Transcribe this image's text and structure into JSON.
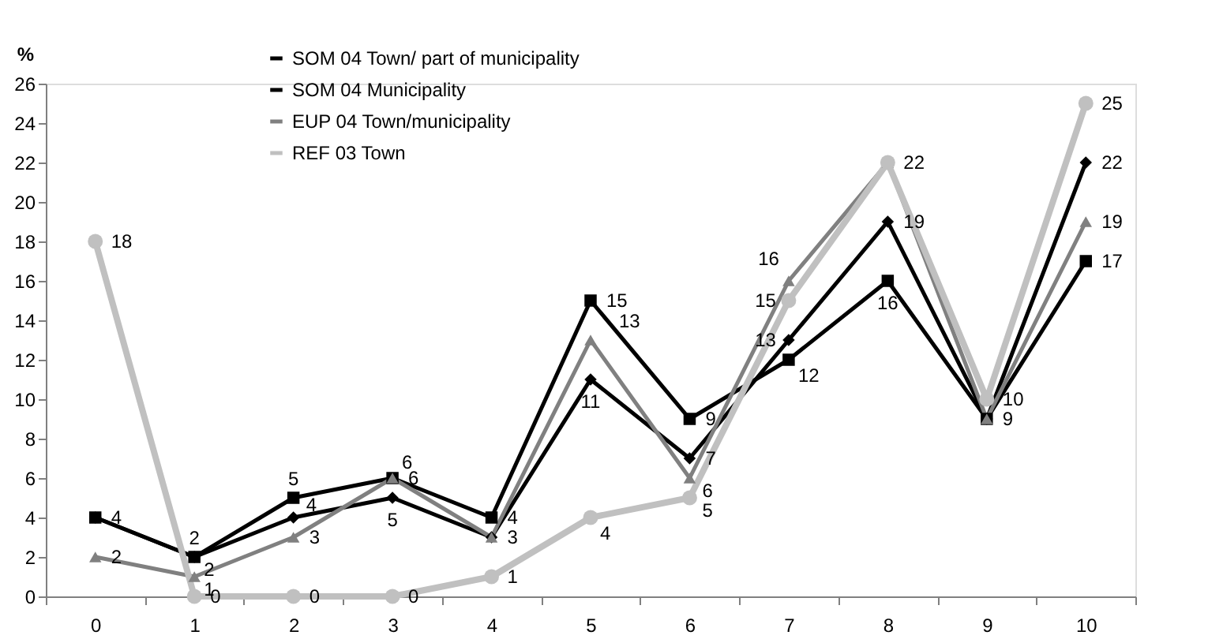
{
  "chart_data": {
    "type": "line",
    "ylabel": "%",
    "categories": [
      "0",
      "1",
      "2",
      "3",
      "4",
      "5",
      "6",
      "7",
      "8",
      "9",
      "10"
    ],
    "ylim": [
      0,
      26
    ],
    "yticks": [
      0,
      2,
      4,
      6,
      8,
      10,
      12,
      14,
      16,
      18,
      20,
      22,
      24,
      26
    ],
    "grid": false,
    "legend": "top left",
    "line_style": "solid",
    "series": [
      {
        "name": "SOM 04 Town/ part of municipality",
        "color": "#000000",
        "marker": "diamond",
        "values": [
          4,
          2,
          4,
          5,
          3,
          11,
          7,
          13,
          19,
          9,
          22
        ],
        "value_labels": [
          "4",
          "2",
          "4",
          "5",
          "3",
          "11",
          "7",
          "13",
          "19",
          "9",
          "22"
        ]
      },
      {
        "name": "SOM 04 Municipality",
        "color": "#000000",
        "marker": "square",
        "values": [
          4,
          2,
          5,
          6,
          4,
          15,
          9,
          12,
          16,
          9,
          17
        ],
        "value_labels": [
          null,
          "2",
          "5",
          "6",
          "4",
          "15",
          "9",
          "12",
          "16",
          null,
          "17"
        ]
      },
      {
        "name": "EUP 04 Town/municipality",
        "color": "#808080",
        "marker": "triangle",
        "values": [
          2,
          1,
          3,
          6,
          3,
          13,
          6,
          16,
          22,
          9,
          19
        ],
        "value_labels": [
          "2",
          "1",
          "3",
          "6",
          null,
          "13",
          "6",
          "16",
          null,
          null,
          "19"
        ]
      },
      {
        "name": "REF 03 Town",
        "color": "#c0c0c0",
        "marker": "circle",
        "values": [
          18,
          0,
          0,
          0,
          1,
          4,
          5,
          15,
          22,
          10,
          25
        ],
        "value_labels": [
          "18",
          "0",
          "0",
          "0",
          "1",
          "4",
          "5",
          "15",
          "22",
          "10",
          "25"
        ]
      }
    ]
  }
}
